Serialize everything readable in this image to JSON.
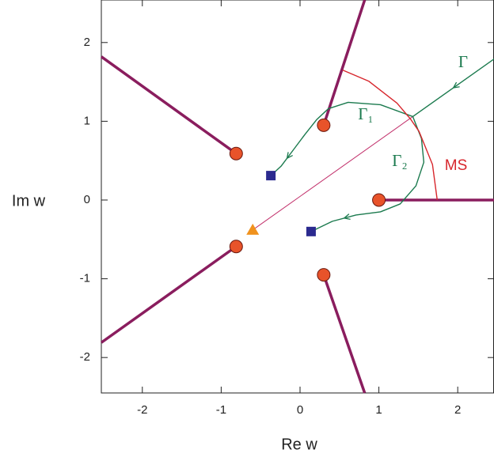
{
  "chart_data": {
    "type": "complex-plane",
    "xlabel": "Re w",
    "ylabel": "Im w",
    "xlim": [
      -2.52,
      2.46
    ],
    "ylim": [
      -2.45,
      2.54
    ],
    "xticks": [
      -2,
      -1,
      0,
      1,
      2
    ],
    "yticks": [
      -2,
      -1,
      0,
      1,
      2
    ],
    "series": [
      {
        "name": "Γ",
        "color": "#1b7a4e",
        "x": [
          2.46,
          1.43
        ],
        "y": [
          1.79,
          1.06
        ]
      },
      {
        "name": "Γ₁",
        "color": "#1b7a4e",
        "x": [
          1.43,
          1.02,
          0.61,
          0.36,
          0.21,
          0.06,
          -0.09,
          -0.24,
          -0.37
        ],
        "y": [
          1.06,
          1.21,
          1.24,
          1.16,
          1.02,
          0.83,
          0.63,
          0.43,
          0.31
        ]
      },
      {
        "name": "Γ₂",
        "color": "#1b7a4e",
        "x": [
          1.43,
          1.54,
          1.57,
          1.47,
          1.27,
          1.02,
          0.71,
          0.41,
          0.14
        ],
        "y": [
          1.06,
          0.78,
          0.48,
          0.18,
          -0.05,
          -0.15,
          -0.19,
          -0.27,
          -0.4
        ]
      },
      {
        "name": "MS",
        "color": "#d7262c",
        "x": [
          0.54,
          0.87,
          1.23,
          1.4,
          1.51,
          1.68,
          1.74
        ],
        "y": [
          1.65,
          1.51,
          1.23,
          1.03,
          0.87,
          0.45,
          0
        ]
      }
    ],
    "line": {
      "color": "#c2306b",
      "x": [
        -0.6,
        1.43
      ],
      "y": [
        -0.38,
        1.06
      ]
    },
    "branch_cuts": {
      "color": "#8a1d5e",
      "segments": [
        {
          "x": [
            0.3,
            0.82
          ],
          "y": [
            0.95,
            2.54
          ]
        },
        {
          "x": [
            -0.81,
            -2.52
          ],
          "y": [
            0.59,
            1.82
          ]
        },
        {
          "x": [
            1,
            2.46
          ],
          "y": [
            0,
            0
          ]
        },
        {
          "x": [
            -0.81,
            -2.52
          ],
          "y": [
            -0.59,
            -1.81
          ]
        },
        {
          "x": [
            0.3,
            0.82
          ],
          "y": [
            -0.95,
            -2.45
          ]
        }
      ]
    },
    "branch_points": {
      "color": "#e8532a",
      "x": [
        0.3,
        -0.81,
        1,
        -0.81,
        0.3
      ],
      "y": [
        0.95,
        0.59,
        0,
        -0.59,
        -0.95
      ]
    },
    "poles": {
      "color": "#2b2a8f",
      "x": [
        -0.37,
        0.14
      ],
      "y": [
        0.31,
        -0.4
      ]
    },
    "saddle": {
      "color": "#f0921e",
      "x": [
        -0.6
      ],
      "y": [
        -0.38
      ]
    }
  }
}
